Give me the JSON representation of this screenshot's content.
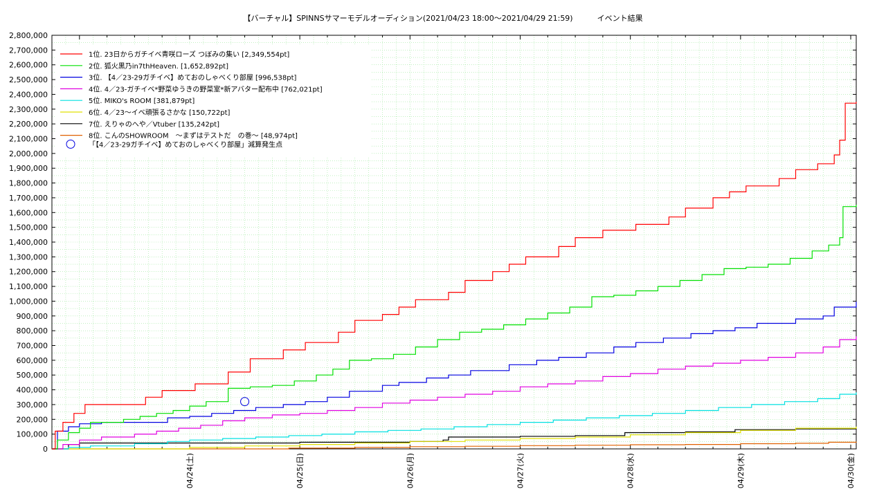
{
  "title": "【バーチャル】SPINNSサマーモデルオーディション(2021/04/23 18:00～2021/04/29 21:59)          イベント結果",
  "chart_data": {
    "type": "line",
    "title": "【バーチャル】SPINNSサマーモデルオーディション(2021/04/23 18:00～2021/04/29 21:59)          イベント結果",
    "xlabel": "",
    "ylabel": "",
    "ylim": [
      0,
      2800000
    ],
    "y_ticks": [
      "0",
      "100,000",
      "200,000",
      "300,000",
      "400,000",
      "500,000",
      "600,000",
      "700,000",
      "800,000",
      "900,000",
      "1,000,000",
      "1,100,000",
      "1,200,000",
      "1,300,000",
      "1,400,000",
      "1,500,000",
      "1,600,000",
      "1,700,000",
      "1,800,000",
      "1,900,000",
      "2,000,000",
      "2,100,000",
      "2,200,000",
      "2,300,000",
      "2,400,000",
      "2,500,000",
      "2,600,000",
      "2,700,000",
      "2,800,000"
    ],
    "x_tick_labels": [
      "04/24(土)",
      "04/25(日)",
      "04/26(月)",
      "04/27(火)",
      "04/28(水)",
      "04/29(木)",
      "04/30(金)"
    ],
    "x_tick_days": [
      1,
      2,
      3,
      4,
      5,
      6,
      7
    ],
    "x_days_start": -0.25,
    "x_days_end": 7.05,
    "grid": true,
    "legend_placement": "top-left",
    "series": [
      {
        "name": "1位. 23日からガチイベ青咲ローズ つぼみの集い [2,349,554pt]",
        "color": "#ff0000",
        "x": [
          -0.25,
          -0.22,
          -0.15,
          -0.05,
          0.05,
          0.45,
          0.6,
          0.75,
          0.9,
          1.05,
          1.35,
          1.55,
          1.7,
          1.85,
          2.05,
          2.35,
          2.5,
          2.75,
          2.9,
          3.05,
          3.35,
          3.5,
          3.75,
          3.9,
          4.05,
          4.35,
          4.5,
          4.75,
          4.9,
          5.05,
          5.35,
          5.5,
          5.75,
          5.9,
          6.05,
          6.35,
          6.5,
          6.7,
          6.85,
          6.9,
          6.95,
          7.05
        ],
        "y": [
          0,
          120000,
          180000,
          240000,
          300000,
          300000,
          350000,
          395000,
          395000,
          440000,
          520000,
          610000,
          610000,
          670000,
          720000,
          790000,
          870000,
          910000,
          960000,
          1010000,
          1060000,
          1140000,
          1200000,
          1250000,
          1300000,
          1370000,
          1430000,
          1480000,
          1480000,
          1520000,
          1570000,
          1630000,
          1700000,
          1740000,
          1780000,
          1830000,
          1890000,
          1930000,
          1990000,
          2090000,
          2340000,
          2349554
        ]
      },
      {
        "name": "2位. 狐火黒乃in7thHeaven. [1,652,892pt]",
        "color": "#00e000",
        "x": [
          -0.25,
          -0.2,
          -0.1,
          0.0,
          0.1,
          0.4,
          0.55,
          0.7,
          0.85,
          1.0,
          1.15,
          1.35,
          1.55,
          1.75,
          1.95,
          2.15,
          2.3,
          2.45,
          2.65,
          2.85,
          3.05,
          3.25,
          3.45,
          3.65,
          3.85,
          4.05,
          4.25,
          4.45,
          4.65,
          4.85,
          5.05,
          5.25,
          5.45,
          5.65,
          5.85,
          6.05,
          6.25,
          6.45,
          6.65,
          6.8,
          6.9,
          6.93,
          7.05
        ],
        "y": [
          0,
          60000,
          110000,
          140000,
          180000,
          200000,
          220000,
          240000,
          260000,
          290000,
          320000,
          410000,
          420000,
          430000,
          460000,
          500000,
          540000,
          600000,
          610000,
          640000,
          690000,
          740000,
          790000,
          810000,
          840000,
          880000,
          920000,
          960000,
          1030000,
          1040000,
          1070000,
          1100000,
          1140000,
          1180000,
          1220000,
          1230000,
          1250000,
          1290000,
          1340000,
          1380000,
          1430000,
          1640000,
          1652892
        ]
      },
      {
        "name": "3位. 【4／23-29ガチイベ】めておのしゃべくり部屋 [996,538pt]",
        "color": "#0000e0",
        "x": [
          -0.25,
          -0.2,
          -0.1,
          0.0,
          0.2,
          0.6,
          0.8,
          1.0,
          1.2,
          1.4,
          1.6,
          1.85,
          2.05,
          2.25,
          2.45,
          2.75,
          2.9,
          3.15,
          3.35,
          3.55,
          3.9,
          4.15,
          4.35,
          4.6,
          4.85,
          5.05,
          5.3,
          5.55,
          5.75,
          5.95,
          6.15,
          6.5,
          6.75,
          6.85,
          7.05
        ],
        "y": [
          0,
          120000,
          150000,
          170000,
          180000,
          180000,
          210000,
          220000,
          240000,
          260000,
          280000,
          300000,
          320000,
          350000,
          390000,
          430000,
          450000,
          480000,
          500000,
          530000,
          570000,
          600000,
          620000,
          650000,
          690000,
          720000,
          750000,
          780000,
          800000,
          820000,
          850000,
          880000,
          900000,
          960000,
          996538
        ]
      },
      {
        "name": "4位. 4／23-ガチイベ*野菜ゆうきの野菜室*新アバター配布中 [762,021pt]",
        "color": "#e000e0",
        "x": [
          -0.25,
          -0.15,
          0.0,
          0.2,
          0.5,
          0.7,
          0.9,
          1.1,
          1.3,
          1.5,
          1.75,
          2.0,
          2.25,
          2.5,
          2.75,
          3.0,
          3.25,
          3.5,
          3.75,
          4.0,
          4.25,
          4.5,
          4.75,
          5.0,
          5.25,
          5.5,
          5.75,
          6.0,
          6.25,
          6.5,
          6.75,
          6.9,
          7.05
        ],
        "y": [
          0,
          30000,
          60000,
          80000,
          100000,
          120000,
          140000,
          160000,
          190000,
          210000,
          230000,
          240000,
          260000,
          280000,
          310000,
          330000,
          350000,
          370000,
          390000,
          420000,
          440000,
          460000,
          490000,
          510000,
          540000,
          560000,
          580000,
          600000,
          620000,
          650000,
          690000,
          740000,
          762021
        ]
      },
      {
        "name": "5位. MIKO's ROOM [381,879pt]",
        "color": "#00e0e0",
        "x": [
          -0.25,
          -0.1,
          0.1,
          0.5,
          0.8,
          1.0,
          1.3,
          1.6,
          1.9,
          2.2,
          2.5,
          2.8,
          3.1,
          3.4,
          3.7,
          4.0,
          4.3,
          4.6,
          4.9,
          5.2,
          5.5,
          5.8,
          6.1,
          6.4,
          6.7,
          6.9,
          7.05
        ],
        "y": [
          0,
          10000,
          20000,
          35000,
          50000,
          60000,
          70000,
          80000,
          90000,
          100000,
          115000,
          125000,
          135000,
          150000,
          165000,
          180000,
          195000,
          210000,
          225000,
          240000,
          260000,
          280000,
          300000,
          320000,
          340000,
          370000,
          381879
        ]
      },
      {
        "name": "6位. 4／23～イベ頑張るさかな [150,722pt]",
        "color": "#e0e000",
        "x": [
          -0.25,
          0.6,
          1.0,
          1.5,
          2.0,
          2.5,
          3.0,
          3.5,
          4.0,
          4.5,
          5.0,
          5.5,
          6.0,
          6.5,
          7.05
        ],
        "y": [
          0,
          0,
          10000,
          20000,
          30000,
          40000,
          50000,
          60000,
          70000,
          80000,
          95000,
          110000,
          125000,
          140000,
          150722
        ]
      },
      {
        "name": "7位. えりゃのへや／Vtuber [135,242pt]",
        "color": "#000000",
        "x": [
          -0.25,
          -0.1,
          0.0,
          1.0,
          2.0,
          3.0,
          3.3,
          3.35,
          4.0,
          4.5,
          4.95,
          5.5,
          5.95,
          6.5,
          7.05
        ],
        "y": [
          0,
          30000,
          40000,
          40000,
          45000,
          50000,
          60000,
          80000,
          85000,
          90000,
          110000,
          115000,
          130000,
          135000,
          135242
        ]
      },
      {
        "name": "8位. こんのSHOWROOM　～まずはテストだ　の巻～ [48,974pt]",
        "color": "#e06000",
        "x": [
          -0.25,
          1.5,
          1.9,
          2.5,
          3.0,
          3.5,
          4.0,
          4.5,
          5.0,
          5.5,
          6.0,
          6.5,
          6.8,
          7.05
        ],
        "y": [
          0,
          0,
          5000,
          10000,
          15000,
          18000,
          22000,
          25000,
          28000,
          30000,
          35000,
          38000,
          45000,
          48974
        ]
      }
    ],
    "annotation": {
      "label": "「【4／23-29ガチイベ】めておのしゃべくり部屋」減算発生点",
      "color": "#0000e0",
      "x": 1.5,
      "y": 320000
    }
  }
}
